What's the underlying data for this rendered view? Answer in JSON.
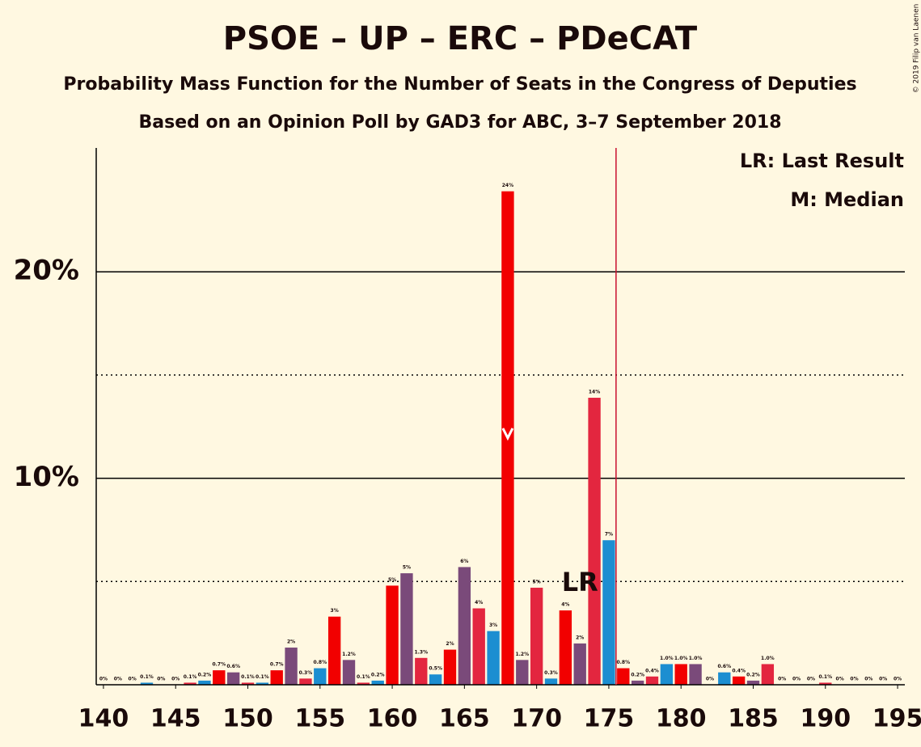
{
  "chart_data": {
    "type": "bar",
    "title": "PSOE – UP – ERC – PDeCAT",
    "subtitle": "Probability Mass Function for the Number of Seats in the Congress of Deputies",
    "subtitle2": "Based on an Opinion Poll by GAD3 for ABC, 3–7 September 2018",
    "legend": [
      "LR: Last Result",
      "M: Median"
    ],
    "copyright": "© 2019 Filip van Laenen",
    "x": [
      140,
      141,
      142,
      143,
      144,
      145,
      146,
      147,
      148,
      149,
      150,
      151,
      152,
      153,
      154,
      155,
      156,
      157,
      158,
      159,
      160,
      161,
      162,
      163,
      164,
      165,
      166,
      167,
      168,
      169,
      170,
      171,
      172,
      173,
      174,
      175,
      176,
      177,
      178,
      179,
      180,
      181,
      182,
      183,
      184,
      185,
      186,
      187,
      188,
      189,
      190,
      191,
      192,
      193,
      194,
      195
    ],
    "values": [
      0,
      0,
      0,
      0.1,
      0,
      0,
      0.1,
      0.2,
      0.7,
      0.6,
      0.1,
      0.1,
      0.7,
      1.8,
      0.3,
      0.8,
      3.3,
      1.2,
      0.1,
      0.2,
      4.8,
      5.4,
      1.3,
      0.5,
      1.7,
      5.7,
      3.7,
      2.6,
      23.9,
      1.2,
      4.7,
      0.3,
      3.6,
      2.0,
      13.9,
      7.0,
      0.8,
      0.2,
      0.4,
      1.0,
      1.0,
      1.0,
      0,
      0.6,
      0.4,
      0.2,
      1.0,
      0,
      0,
      0,
      0.1,
      0,
      0,
      0,
      0,
      0
    ],
    "value_labels": [
      "0%",
      "0%",
      "0%",
      "0.1%",
      "0%",
      "0%",
      "0.1%",
      "0.2%",
      "0.7%",
      "0.6%",
      "0.1%",
      "0.1%",
      "0.7%",
      "2%",
      "0.3%",
      "0.8%",
      "3%",
      "1.2%",
      "0.1%",
      "0.2%",
      "5%",
      "5%",
      "1.3%",
      "0.5%",
      "2%",
      "6%",
      "4%",
      "3%",
      "24%",
      "1.2%",
      "5%",
      "0.3%",
      "4%",
      "2%",
      "14%",
      "7%",
      "0.8%",
      "0.2%",
      "0.4%",
      "1.0%",
      "1.0%",
      "1.0%",
      "0%",
      "0.6%",
      "0.4%",
      "0.2%",
      "1.0%",
      "0%",
      "0%",
      "0%",
      "0.1%",
      "0%",
      "0%",
      "0%",
      "0%",
      "0%"
    ],
    "colors": [
      "#f20000",
      "#7a4a7a",
      "#e3263f",
      "#1c8ed1",
      "#f20000",
      "#7a4a7a",
      "#e3263f",
      "#1c8ed1",
      "#f20000",
      "#7a4a7a",
      "#e3263f",
      "#1c8ed1",
      "#f20000",
      "#7a4a7a",
      "#e3263f",
      "#1c8ed1",
      "#f20000",
      "#7a4a7a",
      "#e3263f",
      "#1c8ed1",
      "#f20000",
      "#7a4a7a",
      "#e3263f",
      "#1c8ed1",
      "#f20000",
      "#7a4a7a",
      "#e3263f",
      "#1c8ed1",
      "#f20000",
      "#7a4a7a",
      "#e3263f",
      "#1c8ed1",
      "#f20000",
      "#7a4a7a",
      "#e3263f",
      "#1c8ed1",
      "#f20000",
      "#7a4a7a",
      "#e3263f",
      "#1c8ed1",
      "#f20000",
      "#7a4a7a",
      "#e3263f",
      "#1c8ed1",
      "#f20000",
      "#7a4a7a",
      "#e3263f",
      "#1c8ed1",
      "#f20000",
      "#7a4a7a",
      "#e3263f",
      "#1c8ed1",
      "#f20000",
      "#7a4a7a",
      "#e3263f",
      "#1c8ed1"
    ],
    "xlim": [
      139.5,
      195.5
    ],
    "xticks": [
      140,
      145,
      150,
      155,
      160,
      165,
      170,
      175,
      180,
      185,
      190,
      195
    ],
    "ylim": [
      0,
      26
    ],
    "yticks": [
      {
        "value": 10,
        "label": "10%"
      },
      {
        "value": 20,
        "label": "20%"
      }
    ],
    "minor_yticks": [
      5,
      15
    ],
    "median": 168,
    "last_result": {
      "value": 173,
      "label": "LR"
    },
    "majority": 176,
    "majority_color": "#c8102e"
  }
}
